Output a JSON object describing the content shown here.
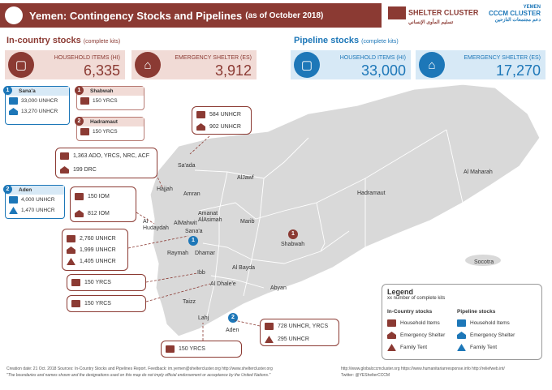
{
  "title": "Yemen: Contingency Stocks and Pipelines",
  "title_date": "(as of October 2018)",
  "logos": {
    "shelter": "SHELTER CLUSTER",
    "shelter_ar": "تسليم المأوى الإنساني",
    "cccm": "CCCM CLUSTER",
    "cccm_ar": "دعم مجتمعات النازحين",
    "country": "YEMEN"
  },
  "in_country": {
    "heading": "In-country stocks",
    "sub": "(complete kits)",
    "hi_label": "HOUSEHOLD ITEMS (HI)",
    "hi_value": "6,335",
    "es_label": "EMERGENCY SHELTER (ES)",
    "es_value": "3,912"
  },
  "pipeline": {
    "heading": "Pipeline stocks",
    "sub": "(complete kits)",
    "hi_label": "HOUSEHOLD ITEMS (HI)",
    "hi_value": "33,000",
    "es_label": "EMERGENCY SHELTER (ES)",
    "es_value": "17,270"
  },
  "hub_cards": {
    "sanaa": {
      "num": "1",
      "name": "Sana'a",
      "hi": "33,000 UNHCR",
      "es": "13,270 UNHCR"
    },
    "aden": {
      "num": "2",
      "name": "Aden",
      "hi": "4,000 UNHCR",
      "ft": "1,470 UNHCR"
    },
    "shabwah": {
      "num": "1",
      "name": "Shabwah",
      "hi": "150 YRCS"
    },
    "hadramaut": {
      "num": "2",
      "name": "Hadramaut",
      "hi": "150 YRCS"
    }
  },
  "callouts": {
    "saada": {
      "hi": "584 UNHCR",
      "es": "902 UNHCR"
    },
    "hajjah": {
      "hi": "1,363 ADO, YRCS, NRC, ACF",
      "es": "199 DRC"
    },
    "hudaydah": {
      "hi": "150 IOM",
      "es": "812 IOM"
    },
    "sanaa_multi": {
      "hi": "2,760 UNHCR",
      "es": "1,999 UNHCR",
      "ft": "1,405 UNHCR"
    },
    "ibb": {
      "hi": "150 YRCS"
    },
    "taizz": {
      "hi": "150 YRCS"
    },
    "aden_callout": {
      "hi": "728 UNHCR, YRCS",
      "ft": "295 UNHCR"
    },
    "lahj": {
      "hi": "150 YRCS"
    }
  },
  "places": [
    "Sa'ada",
    "AlJawf",
    "Al Maharah",
    "Hajjah",
    "Amran",
    "Hadramaut",
    "Amanat AlAsimah",
    "Al Hudaydah",
    "AlMahwit",
    "Sana'a",
    "Marib",
    "Raymah",
    "Dhamar",
    "Shabwah",
    "Ibb",
    "Al Bayda",
    "Al Dhale'e",
    "Abyan",
    "Taizz",
    "Lahj",
    "Aden",
    "Socotra"
  ],
  "map_markers": {
    "sanaa": "1",
    "aden": "2",
    "shabwah": "1"
  },
  "legend": {
    "title": "Legend",
    "sub": "xx  number of complete kits",
    "in_country_head": "In-Country stocks",
    "pipeline_head": "Pipeline stocks",
    "hi": "Household Items",
    "es": "Emergency Shelter",
    "ft": "Family Tent"
  },
  "footer": {
    "line1": "Creation date: 21 Oct. 2018   Sources: In-Country Stocks and Pipelines Report.   Feedback: im.yemen@sheltercluster.org   http://www.sheltercluster.org",
    "line2": "\"The boundaries and names shown and the designations used on this map do not imply official endorsement or acceptance by the United Nations.\"",
    "right1": "http://www.globalcccmcluster.org     https://www.humanitarianresponse.info     http://reliefweb.int/",
    "right2": "Twitter: @YEShelterCCCM"
  },
  "colors": {
    "red": "#8b3a33",
    "blue": "#1d77b8",
    "land": "#d9d9d9"
  }
}
